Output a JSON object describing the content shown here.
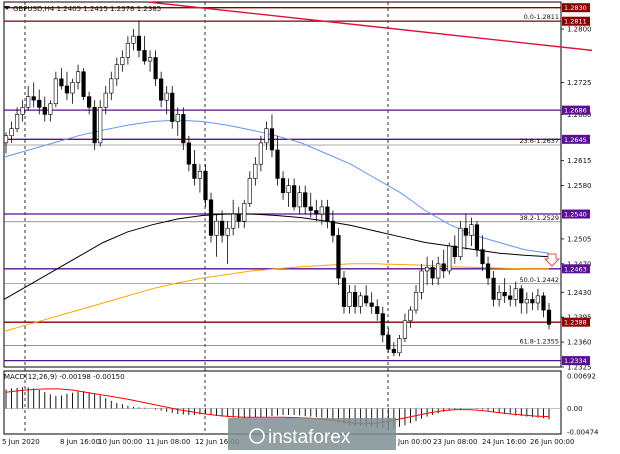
{
  "header": {
    "symbol_line": "GBPUSD,H4  1.2405 1.2415 1.2378 1.2385",
    "macd_label": "MACD(12,26,9) -0.00198 -0.00150"
  },
  "watermark": "instaforex",
  "colors": {
    "bull_candle": "#ffffff",
    "bear_candle": "#000000",
    "ma_fast": "#6495ed",
    "ma_slow": "#000000",
    "ma_orange": "#ffa500",
    "purple_level": "#5a0f96",
    "red_level": "#8b0000",
    "trendline": "#dc143c",
    "macd_signal": "#ff0000"
  },
  "chart_data": {
    "type": "candlestick",
    "symbol": "GBPUSD",
    "timeframe": "H4",
    "ylim": [
      1.2325,
      1.2838
    ],
    "x_labels": [
      "5 Jun 2020",
      "8 Jun 16:00",
      "10 Jun 00:00",
      "11 Jun 08:00",
      "12 Jun 16:00",
      "Jun 00:00",
      "23 Jun 08:00",
      "24 Jun 16:00",
      "26 Jun 00:00"
    ],
    "y_ticks": [
      "1.2800",
      "1.2725",
      "1.2680",
      "1.2615",
      "1.2580",
      "1.2505",
      "1.2470",
      "1.2430",
      "1.2395",
      "1.2360",
      "1.2325"
    ],
    "price_tags": [
      {
        "label": "1.2830",
        "value": 1.283,
        "color": "#8b0000"
      },
      {
        "label": "1.2811",
        "value": 1.2811,
        "color": "#8b0000"
      },
      {
        "label": "1.2686",
        "value": 1.2686,
        "color": "#5a0f96"
      },
      {
        "label": "1.2645",
        "value": 1.2645,
        "color": "#5a0f96"
      },
      {
        "label": "1.2540",
        "value": 1.254,
        "color": "#5a0f96"
      },
      {
        "label": "1.2463",
        "value": 1.2463,
        "color": "#5a0f96"
      },
      {
        "label": "1.2388",
        "value": 1.2388,
        "color": "#8b0000"
      },
      {
        "label": "1.2334",
        "value": 1.2334,
        "color": "#5a0f96"
      }
    ],
    "fib_levels": [
      {
        "label": "0.0-1.2811",
        "value": 1.2811
      },
      {
        "label": "23.6-1.2637",
        "value": 1.2637
      },
      {
        "label": "38.2-1.2529",
        "value": 1.2529
      },
      {
        "label": "50.0-1.2442",
        "value": 1.2442
      },
      {
        "label": "61.8-1.2355",
        "value": 1.2355
      }
    ],
    "vlines": [
      25,
      205,
      388
    ],
    "trendline": [
      [
        148,
        1.2838
      ],
      [
        592,
        1.277
      ]
    ],
    "candles": [
      [
        1.264,
        1.2655,
        1.2625,
        1.265
      ],
      [
        1.265,
        1.267,
        1.264,
        1.266
      ],
      [
        1.266,
        1.269,
        1.2655,
        1.268
      ],
      [
        1.268,
        1.27,
        1.267,
        1.269
      ],
      [
        1.269,
        1.272,
        1.2685,
        1.2705
      ],
      [
        1.2705,
        1.2725,
        1.269,
        1.27
      ],
      [
        1.27,
        1.2715,
        1.268,
        1.269
      ],
      [
        1.269,
        1.2705,
        1.267,
        1.268
      ],
      [
        1.268,
        1.27,
        1.267,
        1.2695
      ],
      [
        1.2695,
        1.274,
        1.269,
        1.273
      ],
      [
        1.273,
        1.2745,
        1.2715,
        1.272
      ],
      [
        1.272,
        1.274,
        1.27,
        1.271
      ],
      [
        1.271,
        1.273,
        1.2695,
        1.2725
      ],
      [
        1.2725,
        1.275,
        1.2715,
        1.274
      ],
      [
        1.274,
        1.2745,
        1.27,
        1.2705
      ],
      [
        1.2705,
        1.2712,
        1.268,
        1.269
      ],
      [
        1.269,
        1.27,
        1.263,
        1.264
      ],
      [
        1.264,
        1.27,
        1.2635,
        1.269
      ],
      [
        1.269,
        1.272,
        1.268,
        1.271
      ],
      [
        1.271,
        1.274,
        1.27,
        1.273
      ],
      [
        1.273,
        1.276,
        1.272,
        1.275
      ],
      [
        1.275,
        1.277,
        1.274,
        1.276
      ],
      [
        1.276,
        1.279,
        1.275,
        1.278
      ],
      [
        1.278,
        1.28,
        1.277,
        1.279
      ],
      [
        1.279,
        1.2812,
        1.276,
        1.277
      ],
      [
        1.277,
        1.279,
        1.275,
        1.2755
      ],
      [
        1.2755,
        1.277,
        1.274,
        1.276
      ],
      [
        1.276,
        1.277,
        1.272,
        1.273
      ],
      [
        1.273,
        1.274,
        1.269,
        1.27
      ],
      [
        1.27,
        1.272,
        1.268,
        1.271
      ],
      [
        1.271,
        1.272,
        1.266,
        1.267
      ],
      [
        1.267,
        1.269,
        1.265,
        1.268
      ],
      [
        1.268,
        1.269,
        1.263,
        1.264
      ],
      [
        1.264,
        1.265,
        1.26,
        1.261
      ],
      [
        1.261,
        1.263,
        1.258,
        1.259
      ],
      [
        1.259,
        1.261,
        1.257,
        1.26
      ],
      [
        1.26,
        1.261,
        1.255,
        1.256
      ],
      [
        1.256,
        1.257,
        1.25,
        1.251
      ],
      [
        1.251,
        1.254,
        1.248,
        1.253
      ],
      [
        1.253,
        1.2545,
        1.25,
        1.251
      ],
      [
        1.251,
        1.253,
        1.247,
        1.252
      ],
      [
        1.252,
        1.256,
        1.251,
        1.254
      ],
      [
        1.254,
        1.255,
        1.252,
        1.253
      ],
      [
        1.253,
        1.256,
        1.252,
        1.2555
      ],
      [
        1.2555,
        1.26,
        1.255,
        1.259
      ],
      [
        1.259,
        1.262,
        1.258,
        1.261
      ],
      [
        1.261,
        1.265,
        1.26,
        1.264
      ],
      [
        1.264,
        1.267,
        1.263,
        1.266
      ],
      [
        1.266,
        1.268,
        1.262,
        1.263
      ],
      [
        1.263,
        1.265,
        1.258,
        1.259
      ],
      [
        1.259,
        1.26,
        1.256,
        1.257
      ],
      [
        1.257,
        1.259,
        1.255,
        1.258
      ],
      [
        1.258,
        1.259,
        1.2545,
        1.255
      ],
      [
        1.255,
        1.258,
        1.254,
        1.257
      ],
      [
        1.257,
        1.258,
        1.254,
        1.255
      ],
      [
        1.255,
        1.257,
        1.2535,
        1.2545
      ],
      [
        1.2545,
        1.256,
        1.253,
        1.254
      ],
      [
        1.254,
        1.256,
        1.2525,
        1.255
      ],
      [
        1.255,
        1.256,
        1.252,
        1.253
      ],
      [
        1.253,
        1.2545,
        1.25,
        1.251
      ],
      [
        1.251,
        1.252,
        1.244,
        1.245
      ],
      [
        1.245,
        1.246,
        1.24,
        1.241
      ],
      [
        1.241,
        1.244,
        1.24,
        1.243
      ],
      [
        1.243,
        1.244,
        1.24,
        1.241
      ],
      [
        1.241,
        1.243,
        1.24,
        1.2425
      ],
      [
        1.2425,
        1.244,
        1.241,
        1.2415
      ],
      [
        1.2415,
        1.243,
        1.24,
        1.241
      ],
      [
        1.241,
        1.242,
        1.239,
        1.24
      ],
      [
        1.24,
        1.241,
        1.236,
        1.237
      ],
      [
        1.237,
        1.238,
        1.2345,
        1.235
      ],
      [
        1.235,
        1.236,
        1.234,
        1.2345
      ],
      [
        1.2345,
        1.237,
        1.234,
        1.2365
      ],
      [
        1.2365,
        1.24,
        1.236,
        1.239
      ],
      [
        1.239,
        1.241,
        1.238,
        1.2405
      ],
      [
        1.2405,
        1.244,
        1.24,
        1.243
      ],
      [
        1.243,
        1.247,
        1.242,
        1.246
      ],
      [
        1.246,
        1.248,
        1.244,
        1.2465
      ],
      [
        1.2465,
        1.2475,
        1.244,
        1.245
      ],
      [
        1.245,
        1.248,
        1.244,
        1.247
      ],
      [
        1.247,
        1.249,
        1.245,
        1.246
      ],
      [
        1.246,
        1.25,
        1.2455,
        1.2495
      ],
      [
        1.2495,
        1.251,
        1.247,
        1.248
      ],
      [
        1.248,
        1.253,
        1.2475,
        1.252
      ],
      [
        1.252,
        1.254,
        1.249,
        1.251
      ],
      [
        1.251,
        1.2535,
        1.2495,
        1.2525
      ],
      [
        1.2525,
        1.253,
        1.248,
        1.249
      ],
      [
        1.249,
        1.251,
        1.246,
        1.247
      ],
      [
        1.247,
        1.248,
        1.244,
        1.245
      ],
      [
        1.245,
        1.246,
        1.241,
        1.242
      ],
      [
        1.242,
        1.244,
        1.241,
        1.243
      ],
      [
        1.243,
        1.245,
        1.2415,
        1.2425
      ],
      [
        1.2425,
        1.244,
        1.241,
        1.242
      ],
      [
        1.242,
        1.2445,
        1.241,
        1.2435
      ],
      [
        1.2435,
        1.244,
        1.24,
        1.2415
      ],
      [
        1.2415,
        1.243,
        1.24,
        1.242
      ],
      [
        1.242,
        1.243,
        1.2405,
        1.2415
      ],
      [
        1.2415,
        1.2435,
        1.2405,
        1.2425
      ],
      [
        1.2425,
        1.243,
        1.2395,
        1.2405
      ],
      [
        1.2405,
        1.2415,
        1.2378,
        1.2385
      ]
    ],
    "ma_fast": [
      1.262,
      1.263,
      1.264,
      1.265,
      1.2658,
      1.2665,
      1.267,
      1.2672,
      1.267,
      1.2665,
      1.2658,
      1.265,
      1.264,
      1.2625,
      1.261,
      1.259,
      1.257,
      1.2545,
      1.2525,
      1.251,
      1.25,
      1.249,
      1.2485
    ],
    "ma_slow": [
      1.242,
      1.244,
      1.246,
      1.248,
      1.25,
      1.2515,
      1.2525,
      1.2533,
      1.2538,
      1.254,
      1.254,
      1.2538,
      1.2535,
      1.253,
      1.2524,
      1.2516,
      1.2508,
      1.25,
      1.2495,
      1.249,
      1.2485,
      1.2482,
      1.248
    ],
    "ma_orange": [
      1.2375,
      1.2385,
      1.2395,
      1.2405,
      1.2415,
      1.2425,
      1.2435,
      1.2443,
      1.245,
      1.2455,
      1.246,
      1.2463,
      1.2466,
      1.2468,
      1.247,
      1.247,
      1.2469,
      1.2468,
      1.2466,
      1.2465,
      1.2464,
      1.2463,
      1.2463
    ],
    "macd": {
      "ylim": [
        -0.0047,
        0.0069
      ],
      "y_ticks": [
        "0.00692",
        "0.00",
        "-0.00474"
      ],
      "hist": [
        0.0035,
        0.0037,
        0.0038,
        0.0039,
        0.0039,
        0.0037,
        0.0034,
        0.003,
        0.0026,
        0.0023,
        0.0024,
        0.0027,
        0.0029,
        0.0031,
        0.0032,
        0.003,
        0.0027,
        0.0024,
        0.0019,
        0.0014,
        0.001,
        0.0008,
        0.0005,
        0.0003,
        0.0002,
        0.0001,
        0.0,
        -0.0002,
        -0.0004,
        -0.0006,
        -0.0008,
        -0.001,
        -0.0011,
        -0.0012,
        -0.0012,
        -0.0011,
        -0.0011,
        -0.0012,
        -0.0014,
        -0.0015,
        -0.0016,
        -0.0017,
        -0.0018,
        -0.0018,
        -0.0018,
        -0.0017,
        -0.0016,
        -0.0015,
        -0.0014,
        -0.0013,
        -0.0012,
        -0.0012,
        -0.0012,
        -0.0013,
        -0.0014,
        -0.0015,
        -0.0016,
        -0.0017,
        -0.0019,
        -0.0022,
        -0.0025,
        -0.0028,
        -0.003,
        -0.0031,
        -0.0032,
        -0.0033,
        -0.0034,
        -0.0035,
        -0.0036,
        -0.0037,
        -0.0036,
        -0.0034,
        -0.0031,
        -0.0027,
        -0.0023,
        -0.0019,
        -0.0015,
        -0.0012,
        -0.0009,
        -0.0006,
        -0.0004,
        -0.0002,
        -0.0001,
        0.0,
        0.0,
        -0.0001,
        -0.0002,
        -0.0004,
        -0.0006,
        -0.0008,
        -0.001,
        -0.0011,
        -0.0013,
        -0.0014,
        -0.0015,
        -0.0016,
        -0.0017,
        -0.0018,
        -0.002
      ],
      "signal": [
        0.003,
        0.0033,
        0.0035,
        0.0036,
        0.0036,
        0.0034,
        0.003,
        0.0026,
        0.0022,
        0.0018,
        0.0013,
        0.0008,
        0.0003,
        -0.0002,
        -0.0006,
        -0.001,
        -0.0013,
        -0.0015,
        -0.0016,
        -0.0016,
        -0.0016,
        -0.0016,
        -0.0017,
        -0.0018,
        -0.002,
        -0.0023,
        -0.0026,
        -0.0028,
        -0.0027,
        -0.0023,
        -0.0018,
        -0.0013,
        -0.0008,
        -0.0004,
        -0.0002,
        -0.0002,
        -0.0004,
        -0.0007,
        -0.001,
        -0.0012,
        -0.0014,
        -0.0015
      ]
    }
  }
}
